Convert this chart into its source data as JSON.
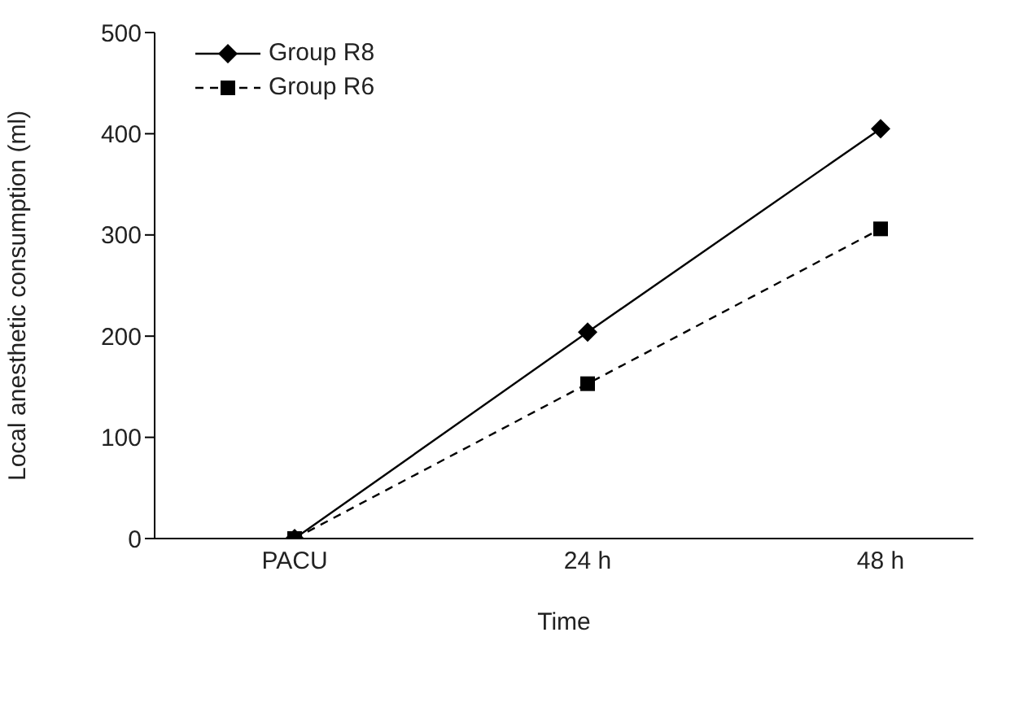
{
  "chart_data": {
    "type": "line",
    "xlabel": "Time",
    "ylabel": "Local anesthetic consumption (ml)",
    "categories": [
      "PACU",
      "24 h",
      "48 h"
    ],
    "series": [
      {
        "name": "Group R8",
        "color": "#000000",
        "values": [
          0,
          204,
          405
        ],
        "marker": "diamond",
        "line_style": "solid"
      },
      {
        "name": "Group R6",
        "color": "#000000",
        "values": [
          0,
          153,
          306
        ],
        "marker": "square",
        "line_style": "dashed"
      }
    ],
    "ylim": [
      0,
      500
    ],
    "yticks": [
      0,
      100,
      200,
      300,
      400,
      500
    ],
    "grid": false,
    "legend": "top left"
  }
}
